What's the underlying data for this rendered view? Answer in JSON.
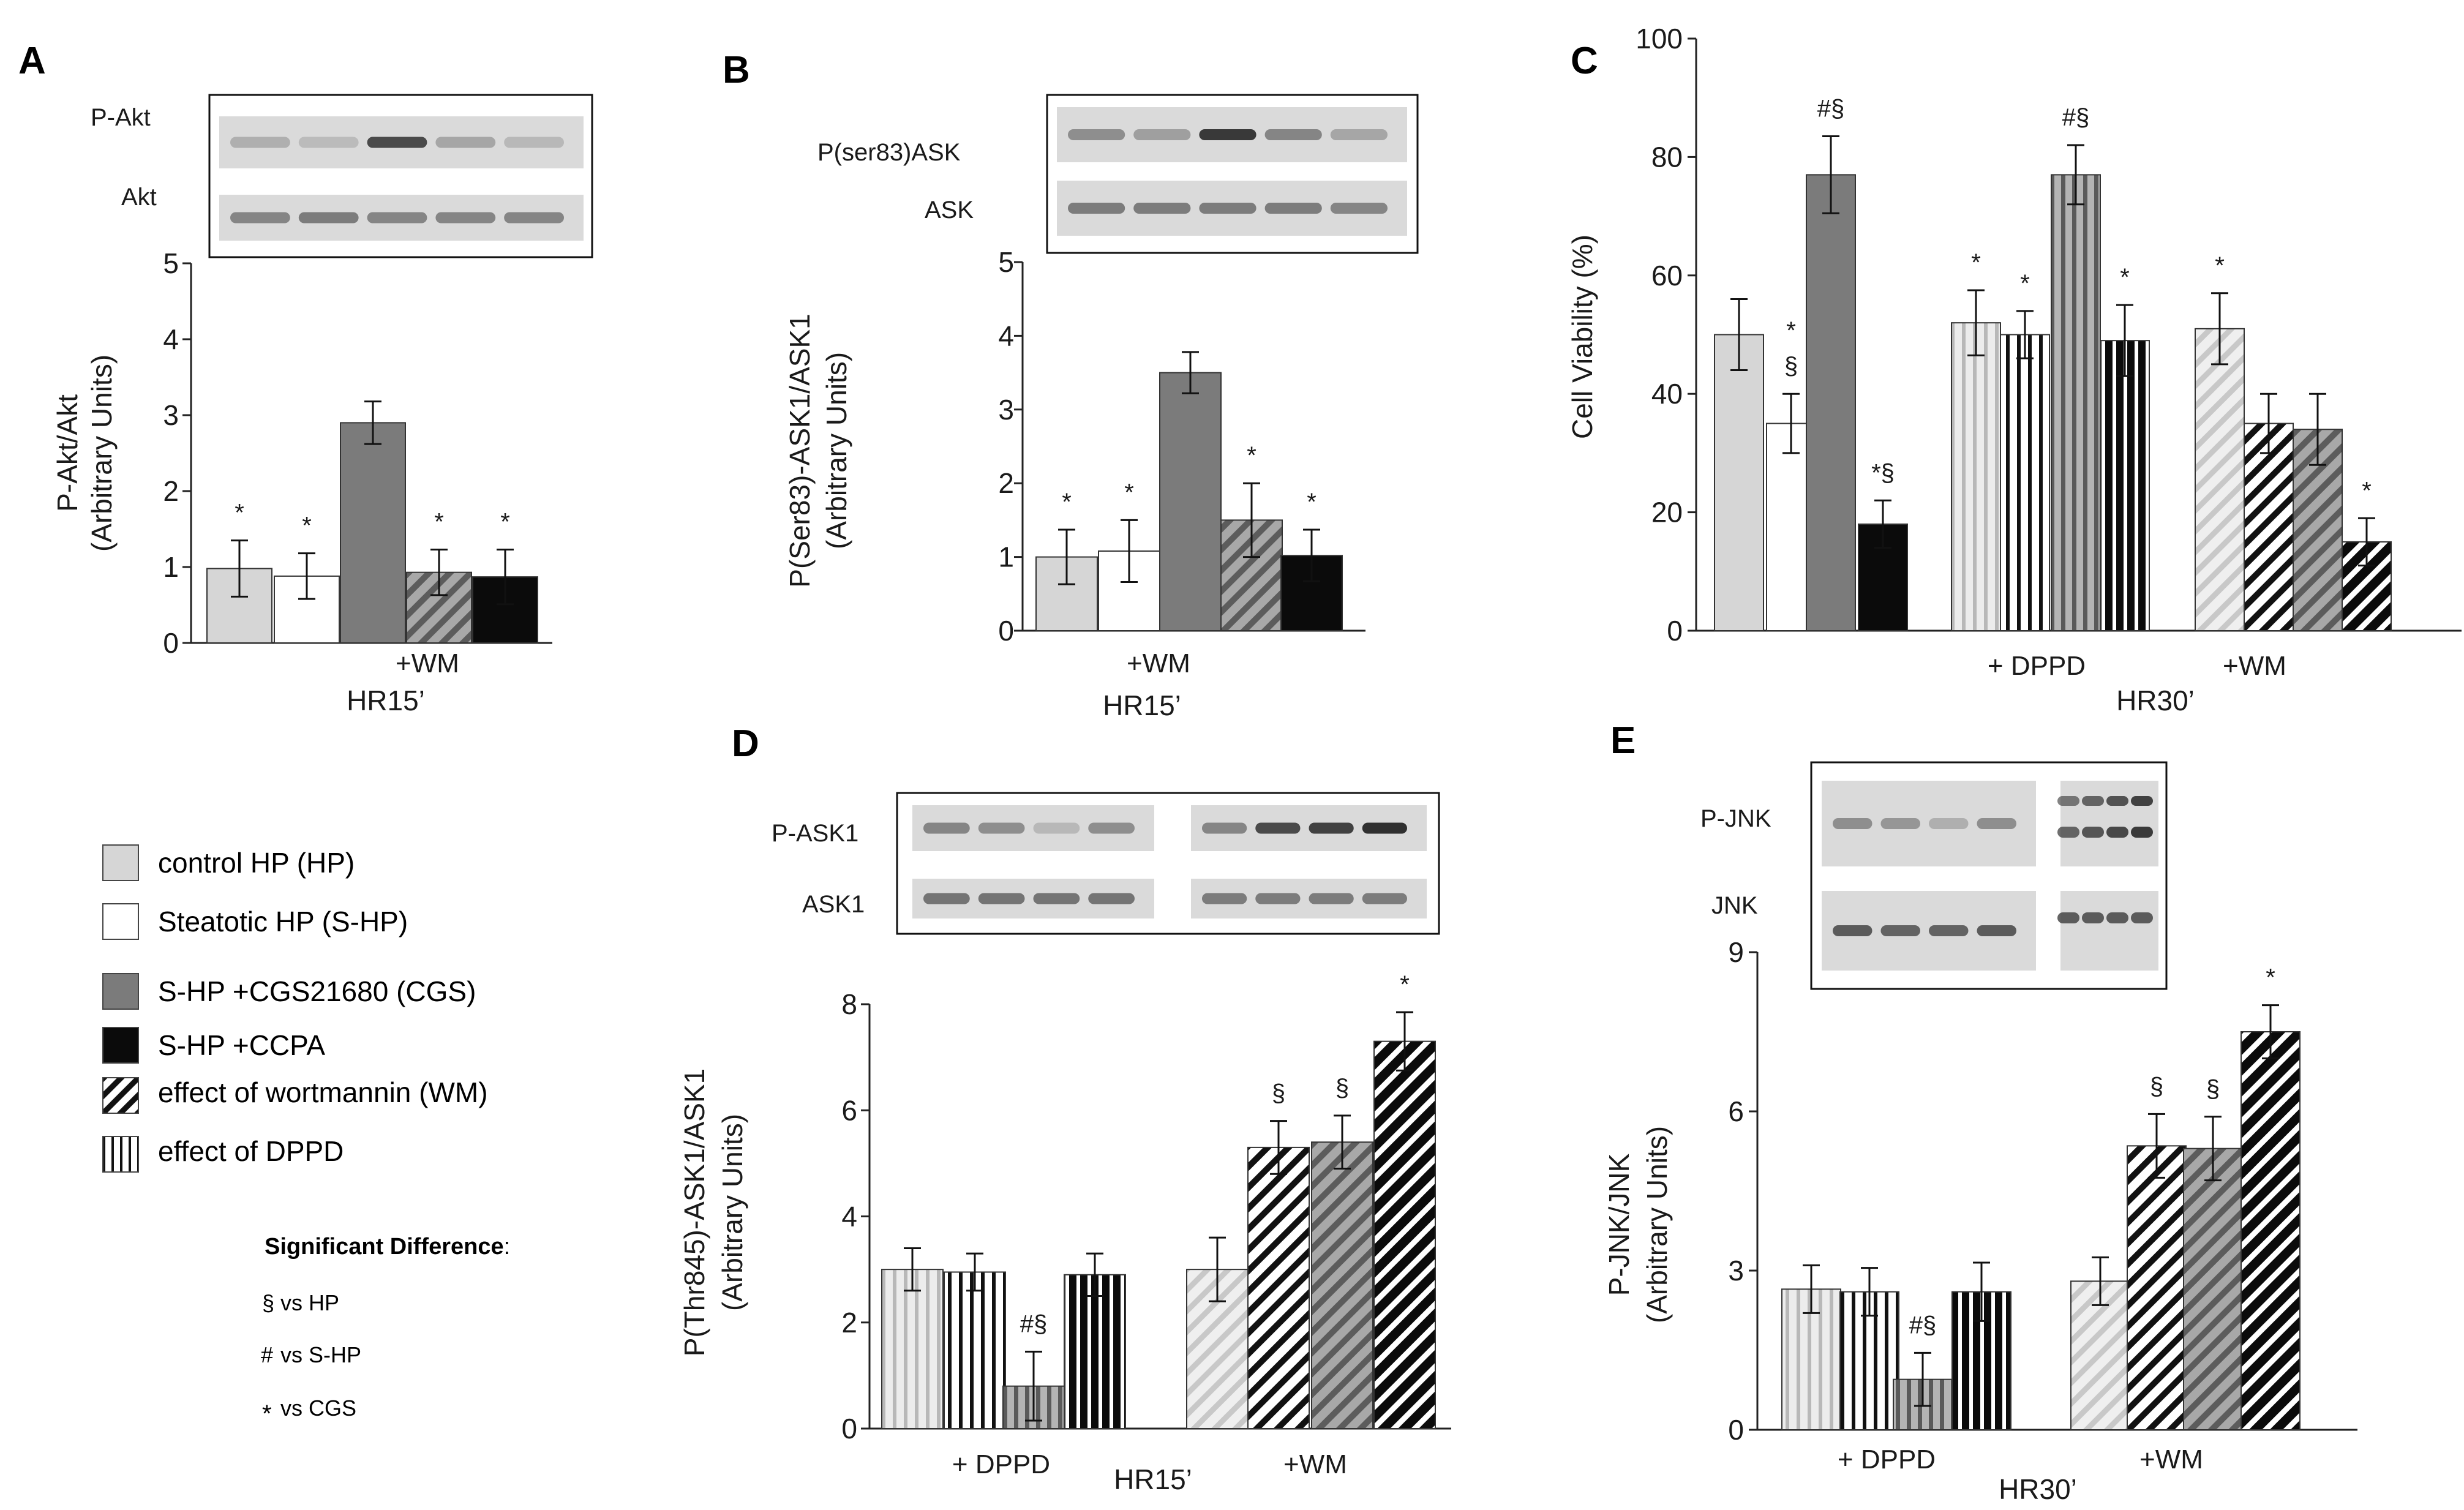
{
  "colors": {
    "hp": "#d6d6d6",
    "shp": "#ffffff",
    "cgs": "#7b7b7b",
    "ccpa": "#0b0b0b",
    "axis": "#222222",
    "blot_bg": "#dadada",
    "band": "#303030"
  },
  "legend": {
    "items": [
      {
        "label": "control HP (HP)",
        "pattern": "hp"
      },
      {
        "label": "Steatotic HP (S-HP)",
        "pattern": "shp"
      },
      {
        "label": "S-HP +CGS21680 (CGS)",
        "pattern": "cgs"
      },
      {
        "label": "S-HP +CCPA",
        "pattern": "ccpa"
      },
      {
        "label": "effect of wortmannin  (WM)",
        "pattern": "diag"
      },
      {
        "label": "effect of DPPD",
        "pattern": "vert"
      }
    ],
    "significance_title": "Significant Difference",
    "significance_colon": ":",
    "notes": [
      {
        "symbol": "§",
        "text": "vs  HP"
      },
      {
        "symbol": "#",
        "text": "vs  S-HP"
      },
      {
        "symbol": "*",
        "text": "vs  CGS"
      }
    ]
  },
  "chart_data": [
    {
      "panel": "A",
      "type": "bar",
      "ylabel": [
        "P-Akt/Akt",
        "(Arbitrary Units)"
      ],
      "ylim": [
        0,
        5
      ],
      "yticks": [
        0,
        1,
        2,
        3,
        4,
        5
      ],
      "group_labels": [
        "+WM"
      ],
      "sublabel": "HR15’",
      "blot_labels": [
        "P-Akt",
        "Akt"
      ],
      "bars": [
        {
          "series": "HP",
          "fill": "hp",
          "value": 0.98,
          "err": 0.37,
          "sig": "*"
        },
        {
          "series": "S-HP",
          "fill": "shp",
          "value": 0.88,
          "err": 0.3,
          "sig": "*"
        },
        {
          "series": "CGS",
          "fill": "cgs",
          "value": 2.9,
          "err": 0.28,
          "sig": ""
        },
        {
          "series": "CGS+WM",
          "fill": "diag-cgs",
          "value": 0.93,
          "err": 0.3,
          "sig": "*"
        },
        {
          "series": "CCPA",
          "fill": "ccpa",
          "value": 0.87,
          "err": 0.36,
          "sig": "*"
        }
      ]
    },
    {
      "panel": "B",
      "type": "bar",
      "ylabel": [
        "P(Ser83)-ASK1/ASK1",
        "(Arbitrary  Units)"
      ],
      "ylim": [
        0,
        5
      ],
      "yticks": [
        0,
        1,
        2,
        3,
        4,
        5
      ],
      "group_labels": [
        "+WM"
      ],
      "sublabel": "HR15’",
      "blot_labels": [
        "P(ser83)ASK",
        "ASK"
      ],
      "bars": [
        {
          "series": "HP",
          "fill": "hp",
          "value": 1.0,
          "err": 0.37,
          "sig": "*"
        },
        {
          "series": "S-HP",
          "fill": "shp",
          "value": 1.08,
          "err": 0.42,
          "sig": "*"
        },
        {
          "series": "CGS",
          "fill": "cgs",
          "value": 3.5,
          "err": 0.28,
          "sig": ""
        },
        {
          "series": "CGS+WM",
          "fill": "diag-cgs",
          "value": 1.5,
          "err": 0.5,
          "sig": "*"
        },
        {
          "series": "CCPA",
          "fill": "ccpa",
          "value": 1.02,
          "err": 0.35,
          "sig": "*"
        }
      ]
    },
    {
      "panel": "C",
      "type": "bar",
      "ylabel": [
        "Cell Viability (%)"
      ],
      "ylim": [
        0,
        100
      ],
      "yticks": [
        0,
        20,
        40,
        60,
        80,
        100
      ],
      "group_labels": [
        "+ DPPD",
        "+WM"
      ],
      "sublabel": "HR30’",
      "bars": [
        {
          "series": "HP",
          "fill": "hp",
          "value": 50,
          "err": 6,
          "sig": ""
        },
        {
          "series": "S-HP",
          "fill": "shp",
          "value": 35,
          "err": 5,
          "sig": "*\n§"
        },
        {
          "series": "CGS",
          "fill": "cgs",
          "value": 77,
          "err": 6.5,
          "sig": "#§"
        },
        {
          "series": "CCPA",
          "fill": "ccpa",
          "value": 18,
          "err": 4,
          "sig": "*§"
        },
        {
          "series": "HP+DPPD",
          "fill": "vert-hp",
          "value": 52,
          "err": 5.5,
          "sig": "*"
        },
        {
          "series": "S-HP+DPPD",
          "fill": "vert-shp",
          "value": 50,
          "err": 4,
          "sig": "*"
        },
        {
          "series": "CGS+DPPD",
          "fill": "vert-cgs",
          "value": 77,
          "err": 5,
          "sig": "#§"
        },
        {
          "series": "CCPA+DPPD",
          "fill": "vert-ccpa",
          "value": 49,
          "err": 6,
          "sig": "*"
        },
        {
          "series": "HP+WM",
          "fill": "diag-hp",
          "value": 51,
          "err": 6,
          "sig": "*"
        },
        {
          "series": "S-HP+WM",
          "fill": "diag-shp",
          "value": 35,
          "err": 5,
          "sig": ""
        },
        {
          "series": "CGS+WM",
          "fill": "diag-cgs",
          "value": 34,
          "err": 6,
          "sig": ""
        },
        {
          "series": "CCPA+WM",
          "fill": "diag-ccpa",
          "value": 15,
          "err": 4,
          "sig": "*"
        }
      ]
    },
    {
      "panel": "D",
      "type": "bar",
      "ylabel": [
        "P(Thr845)-ASK1/ASK1",
        "(Arbitrary  Units)"
      ],
      "ylim": [
        0,
        8
      ],
      "yticks": [
        0,
        2,
        4,
        6,
        8
      ],
      "group_labels": [
        "+ DPPD",
        "+WM"
      ],
      "sublabel": "HR15’",
      "blot_labels": [
        "P-ASK1",
        "ASK1"
      ],
      "bars": [
        {
          "series": "HP+DPPD",
          "fill": "vert-hp",
          "value": 3.0,
          "err": 0.4,
          "sig": ""
        },
        {
          "series": "S-HP+DPPD",
          "fill": "vert-shp",
          "value": 2.95,
          "err": 0.35,
          "sig": ""
        },
        {
          "series": "CGS+DPPD",
          "fill": "vert-cgs",
          "value": 0.8,
          "err": 0.65,
          "sig": "#§"
        },
        {
          "series": "CCPA+DPPD",
          "fill": "vert-ccpa",
          "value": 2.9,
          "err": 0.4,
          "sig": ""
        },
        {
          "series": "HP+WM",
          "fill": "diag-hp",
          "value": 3.0,
          "err": 0.6,
          "sig": ""
        },
        {
          "series": "S-HP+WM",
          "fill": "diag-shp",
          "value": 5.3,
          "err": 0.5,
          "sig": "§"
        },
        {
          "series": "CGS+WM",
          "fill": "diag-cgs",
          "value": 5.4,
          "err": 0.5,
          "sig": "§"
        },
        {
          "series": "CCPA+WM",
          "fill": "diag-ccpa",
          "value": 7.3,
          "err": 0.55,
          "sig": "*"
        }
      ]
    },
    {
      "panel": "E",
      "type": "bar",
      "ylabel": [
        "P-JNK/JNK",
        "(Arbitrary Units)"
      ],
      "ylim": [
        0,
        9
      ],
      "yticks": [
        0,
        3,
        6,
        9
      ],
      "group_labels": [
        "+ DPPD",
        "+WM"
      ],
      "sublabel": "HR30’",
      "blot_labels": [
        "P-JNK",
        "JNK"
      ],
      "bars": [
        {
          "series": "HP+DPPD",
          "fill": "vert-hp",
          "value": 2.65,
          "err": 0.45,
          "sig": ""
        },
        {
          "series": "S-HP+DPPD",
          "fill": "vert-shp",
          "value": 2.6,
          "err": 0.45,
          "sig": ""
        },
        {
          "series": "CGS+DPPD",
          "fill": "vert-cgs",
          "value": 0.95,
          "err": 0.5,
          "sig": "#§"
        },
        {
          "series": "CCPA+DPPD",
          "fill": "vert-ccpa",
          "value": 2.6,
          "err": 0.55,
          "sig": ""
        },
        {
          "series": "HP+WM",
          "fill": "diag-hp",
          "value": 2.8,
          "err": 0.45,
          "sig": ""
        },
        {
          "series": "S-HP+WM",
          "fill": "diag-shp",
          "value": 5.35,
          "err": 0.6,
          "sig": "§"
        },
        {
          "series": "CGS+WM",
          "fill": "diag-cgs",
          "value": 5.3,
          "err": 0.6,
          "sig": "§"
        },
        {
          "series": "CCPA+WM",
          "fill": "diag-ccpa",
          "value": 7.5,
          "err": 0.5,
          "sig": "*"
        }
      ]
    }
  ]
}
